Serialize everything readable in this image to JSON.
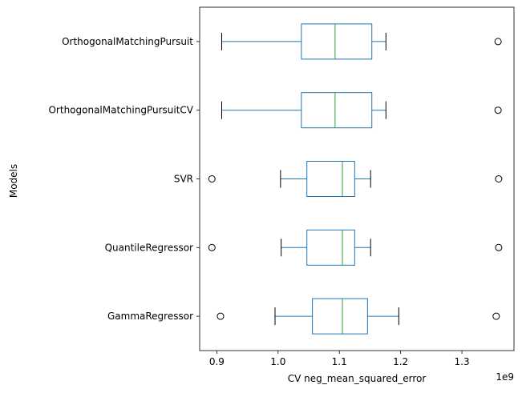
{
  "chart_data": {
    "type": "boxplot",
    "orientation": "horizontal",
    "xlabel": "CV neg_mean_squared_error",
    "ylabel": "Models",
    "x_offset_label": "1e9",
    "xlim": [
      0.872,
      1.385
    ],
    "x_ticks": [
      {
        "value": 0.9,
        "label": "0.9"
      },
      {
        "value": 1.0,
        "label": "1.0"
      },
      {
        "value": 1.1,
        "label": "1.1"
      },
      {
        "value": 1.2,
        "label": "1.2"
      },
      {
        "value": 1.3,
        "label": "1.3"
      }
    ],
    "colors": {
      "box": "#1f77b4",
      "median": "#2ca02c",
      "whisker": "#000000",
      "flier": "#000000"
    },
    "series": [
      {
        "name": "OrthogonalMatchingPursuit",
        "whisker_low": 0.908,
        "q1": 1.038,
        "median": 1.093,
        "q3": 1.153,
        "whisker_high": 1.176,
        "outliers": [
          1.359
        ]
      },
      {
        "name": "OrthogonalMatchingPursuitCV",
        "whisker_low": 0.908,
        "q1": 1.038,
        "median": 1.093,
        "q3": 1.153,
        "whisker_high": 1.176,
        "outliers": [
          1.359
        ]
      },
      {
        "name": "SVR",
        "whisker_low": 1.004,
        "q1": 1.047,
        "median": 1.105,
        "q3": 1.125,
        "whisker_high": 1.151,
        "outliers": [
          0.892,
          1.36
        ]
      },
      {
        "name": "QuantileRegressor",
        "whisker_low": 1.005,
        "q1": 1.047,
        "median": 1.105,
        "q3": 1.125,
        "whisker_high": 1.151,
        "outliers": [
          0.892,
          1.36
        ]
      },
      {
        "name": "GammaRegressor",
        "whisker_low": 0.995,
        "q1": 1.056,
        "median": 1.105,
        "q3": 1.146,
        "whisker_high": 1.197,
        "outliers": [
          0.906,
          1.356
        ]
      }
    ]
  }
}
